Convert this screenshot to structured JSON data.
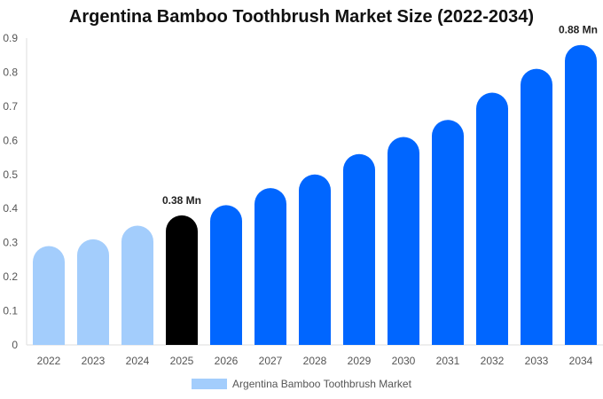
{
  "chart_data": {
    "type": "bar",
    "title": "Argentina Bamboo Toothbrush Market Size (2022-2034)",
    "categories": [
      "2022",
      "2023",
      "2024",
      "2025",
      "2026",
      "2027",
      "2028",
      "2029",
      "2030",
      "2031",
      "2032",
      "2033",
      "2034"
    ],
    "series": [
      {
        "name": "Argentina Bamboo Toothbrush Market",
        "values": [
          0.29,
          0.31,
          0.35,
          0.38,
          0.41,
          0.46,
          0.5,
          0.56,
          0.61,
          0.66,
          0.74,
          0.81,
          0.88
        ]
      }
    ],
    "ylim": [
      0,
      0.9
    ],
    "yticks": [
      "0",
      "0.1",
      "0.2",
      "0.3",
      "0.4",
      "0.5",
      "0.6",
      "0.7",
      "0.8",
      "0.9"
    ],
    "annotations": [
      {
        "category": "2025",
        "text": "0.38 Mn"
      },
      {
        "category": "2034",
        "text": "0.88 Mn"
      }
    ],
    "colors": {
      "historical": "#a3cdfc",
      "current": "#000000",
      "forecast": "#0066ff"
    },
    "legend_placement": "bottom",
    "grid": false
  }
}
